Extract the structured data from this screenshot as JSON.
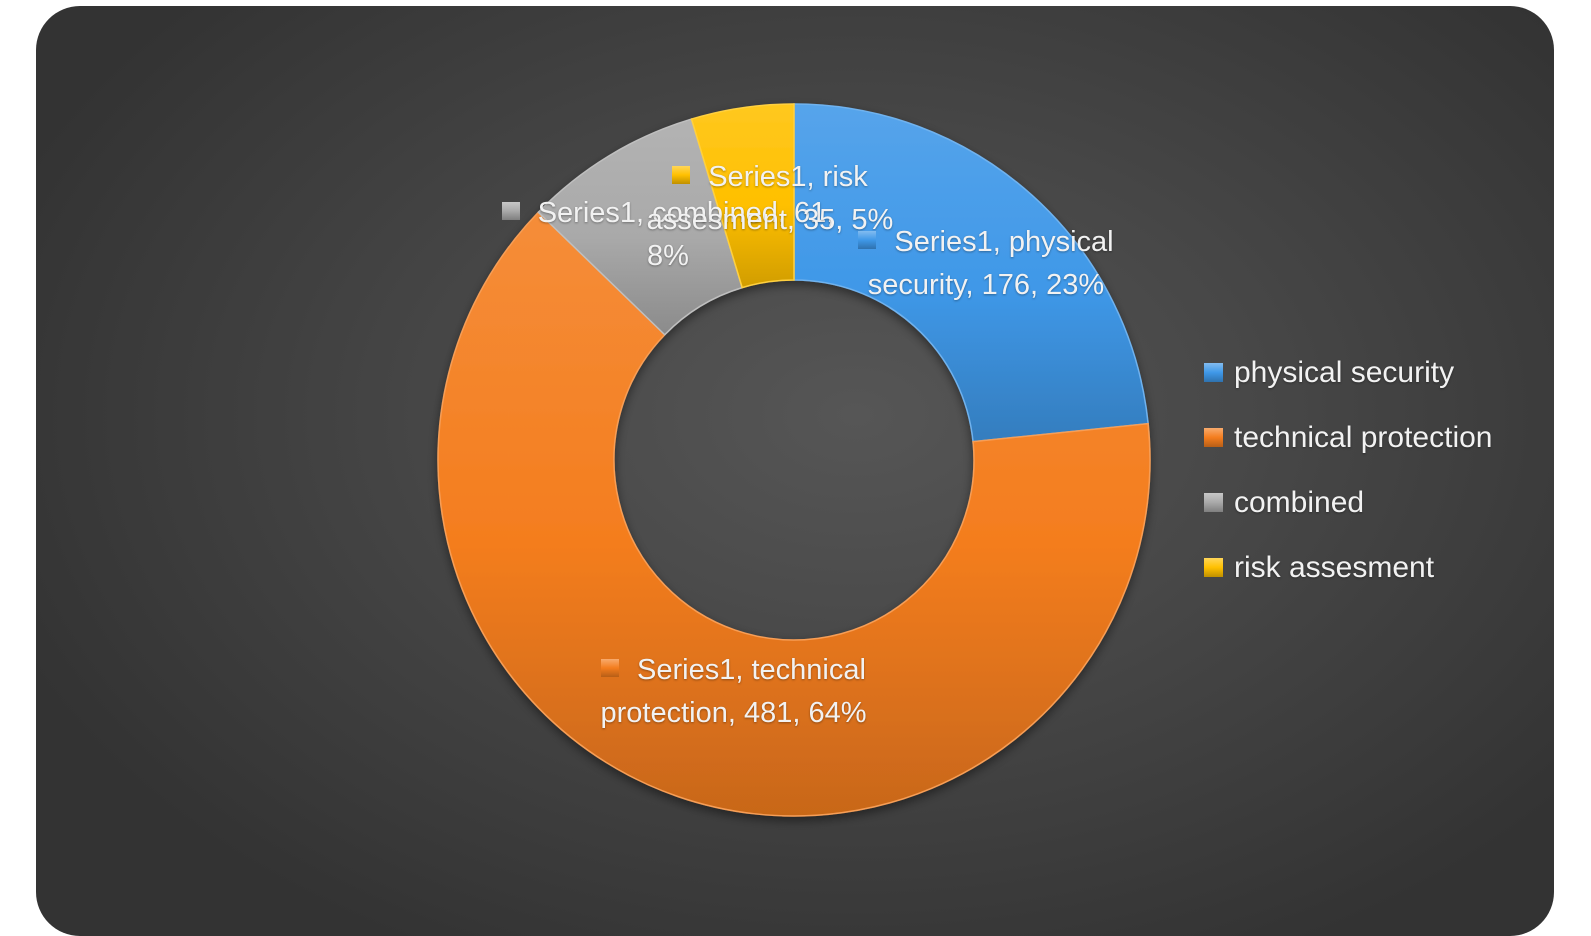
{
  "chart_data": {
    "type": "pie",
    "variant": "donut",
    "title": "",
    "series_name": "Series1",
    "categories": [
      "physical security",
      "technical protection",
      "combined",
      "risk assesment"
    ],
    "values": [
      176,
      481,
      61,
      35
    ],
    "percentages": [
      "23%",
      "64%",
      "8%",
      "5%"
    ],
    "colors": [
      "#3f98e8",
      "#f47d1e",
      "#a9a9a9",
      "#ffc000"
    ],
    "data_labels": [
      "Series1, physical security, 176, 23%",
      "Series1, technical protection, 481, 64%",
      "Series1, combined, 61, 8%",
      "Series1, risk assesment, 35, 5%"
    ],
    "legend": {
      "position": "right",
      "entries": [
        "physical security",
        "technical protection",
        "combined",
        "risk assesment"
      ]
    },
    "background": "#3d3d3d"
  }
}
